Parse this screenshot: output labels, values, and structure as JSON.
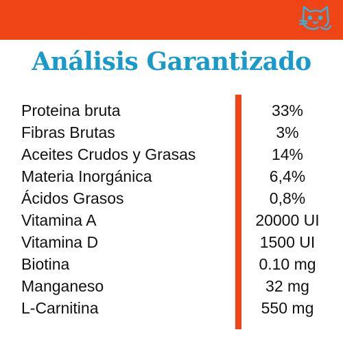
{
  "colors": {
    "header_bar": "#ee4416",
    "title": "#1a9ac9",
    "divider": "#ee4416",
    "logo": "#3ab0dd",
    "text": "#111111"
  },
  "header": {
    "logo_icon": "cat-face-icon"
  },
  "title": "Análisis Garantizado",
  "analysis": {
    "rows": [
      {
        "nutrient": "Proteina bruta",
        "value": "33%"
      },
      {
        "nutrient": "Fibras Brutas",
        "value": "3%"
      },
      {
        "nutrient": "Aceites Crudos y Grasas",
        "value": "14%"
      },
      {
        "nutrient": "Materia Inorgánica",
        "value": "6,4%"
      },
      {
        "nutrient": "Ácidos Grasos",
        "value": "0,8%"
      },
      {
        "nutrient": "Vitamina A",
        "value": "20000 UI"
      },
      {
        "nutrient": "Vitamina D",
        "value": "1500 UI"
      },
      {
        "nutrient": "Biotina",
        "value": "0.10 mg"
      },
      {
        "nutrient": "Manganeso",
        "value": "32 mg"
      },
      {
        "nutrient": "L-Carnitina",
        "value": "550 mg"
      }
    ]
  }
}
